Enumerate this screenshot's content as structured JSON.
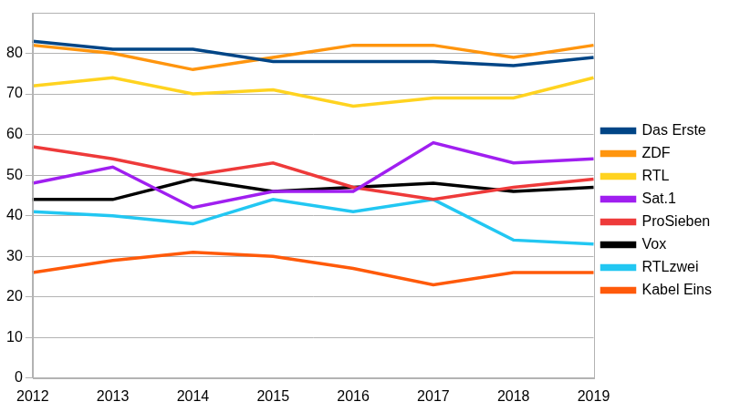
{
  "chart_data": {
    "type": "line",
    "categories": [
      "2012",
      "2013",
      "2014",
      "2015",
      "2016",
      "2017",
      "2018",
      "2019"
    ],
    "series": [
      {
        "name": "Das Erste",
        "color": "#004586",
        "values": [
          83,
          81,
          81,
          78,
          78,
          78,
          77,
          79
        ]
      },
      {
        "name": "ZDF",
        "color": "#ff950e",
        "values": [
          82,
          80,
          76,
          79,
          82,
          82,
          79,
          82
        ]
      },
      {
        "name": "RTL",
        "color": "#ffd320",
        "values": [
          72,
          74,
          70,
          71,
          67,
          69,
          69,
          74
        ]
      },
      {
        "name": "Sat.1",
        "color": "#a01ff0",
        "values": [
          48,
          52,
          42,
          46,
          46,
          58,
          53,
          54
        ]
      },
      {
        "name": "ProSieben",
        "color": "#ee3a3a",
        "values": [
          57,
          54,
          50,
          53,
          47,
          44,
          47,
          49
        ]
      },
      {
        "name": "Vox",
        "color": "#000000",
        "values": [
          44,
          44,
          49,
          46,
          47,
          48,
          46,
          47
        ]
      },
      {
        "name": "RTLzwei",
        "color": "#22c7f2",
        "values": [
          41,
          40,
          38,
          44,
          41,
          44,
          34,
          33
        ]
      },
      {
        "name": "Kabel Eins",
        "color": "#ff5a0a",
        "values": [
          26,
          29,
          31,
          30,
          27,
          23,
          26,
          26
        ]
      }
    ],
    "ylim": [
      0,
      90
    ],
    "yticks": [
      0,
      10,
      20,
      30,
      40,
      50,
      60,
      70,
      80
    ],
    "grid": true,
    "legend": "right",
    "marker": "none"
  }
}
